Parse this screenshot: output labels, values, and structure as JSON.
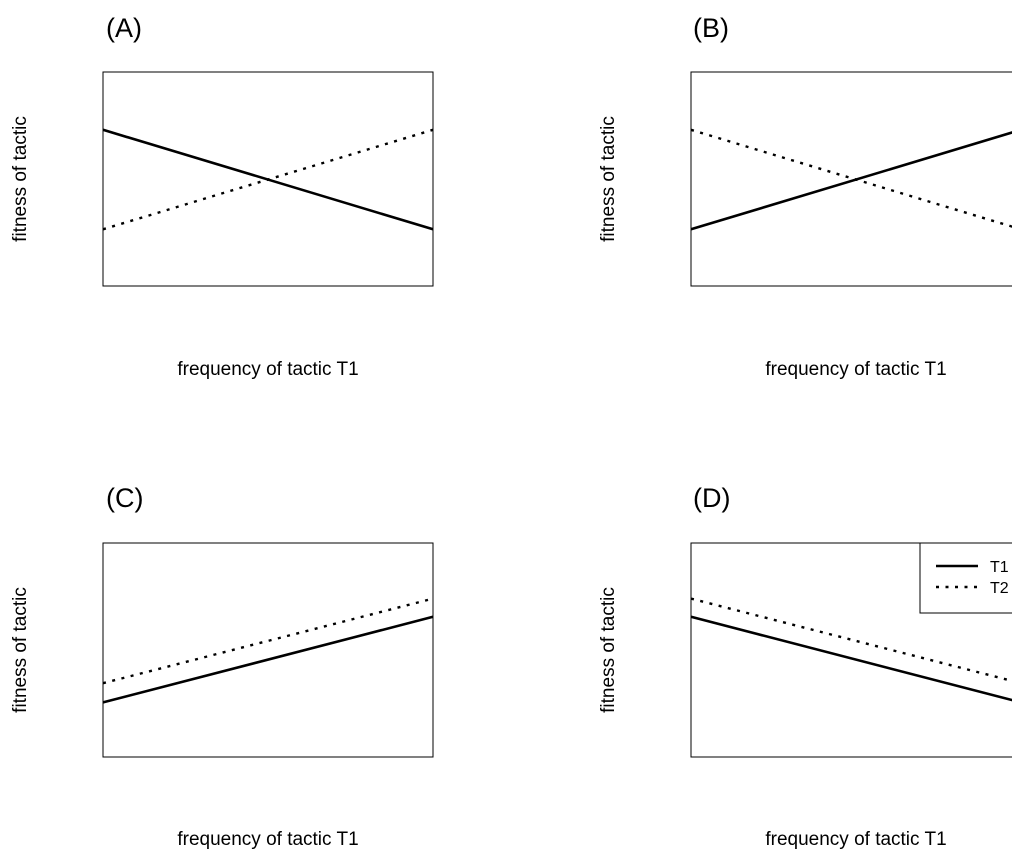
{
  "chart_data": [
    {
      "type": "line",
      "title": "(A)",
      "xlabel": "frequency of tactic T1",
      "ylabel": "fitness of tactic",
      "xlim": [
        0,
        1
      ],
      "ylim": [
        0,
        1
      ],
      "x": [
        0,
        1
      ],
      "series": [
        {
          "name": "T1",
          "style": "solid",
          "values": [
            0.73,
            0.265
          ]
        },
        {
          "name": "T2",
          "style": "dotted",
          "values": [
            0.265,
            0.73
          ]
        }
      ]
    },
    {
      "type": "line",
      "title": "(B)",
      "xlabel": "frequency of tactic T1",
      "ylabel": "fitness of tactic",
      "xlim": [
        0,
        1
      ],
      "ylim": [
        0,
        1
      ],
      "x": [
        0,
        1
      ],
      "series": [
        {
          "name": "T1",
          "style": "solid",
          "values": [
            0.265,
            0.73
          ]
        },
        {
          "name": "T2",
          "style": "dotted",
          "values": [
            0.73,
            0.265
          ]
        }
      ]
    },
    {
      "type": "line",
      "title": "(C)",
      "xlabel": "frequency of tactic T1",
      "ylabel": "fitness of tactic",
      "xlim": [
        0,
        1
      ],
      "ylim": [
        0,
        1
      ],
      "x": [
        0,
        1
      ],
      "series": [
        {
          "name": "T1",
          "style": "solid",
          "values": [
            0.255,
            0.655
          ]
        },
        {
          "name": "T2",
          "style": "dotted",
          "values": [
            0.345,
            0.74
          ]
        }
      ]
    },
    {
      "type": "line",
      "title": "(D)",
      "xlabel": "frequency of tactic T1",
      "ylabel": "fitness of tactic",
      "xlim": [
        0,
        1
      ],
      "ylim": [
        0,
        1
      ],
      "x": [
        0,
        1
      ],
      "series": [
        {
          "name": "T1",
          "style": "solid",
          "values": [
            0.655,
            0.255
          ]
        },
        {
          "name": "T2",
          "style": "dotted",
          "values": [
            0.74,
            0.345
          ]
        }
      ],
      "legend": {
        "position": "top-right",
        "entries": [
          "T1",
          "T2"
        ]
      }
    }
  ]
}
